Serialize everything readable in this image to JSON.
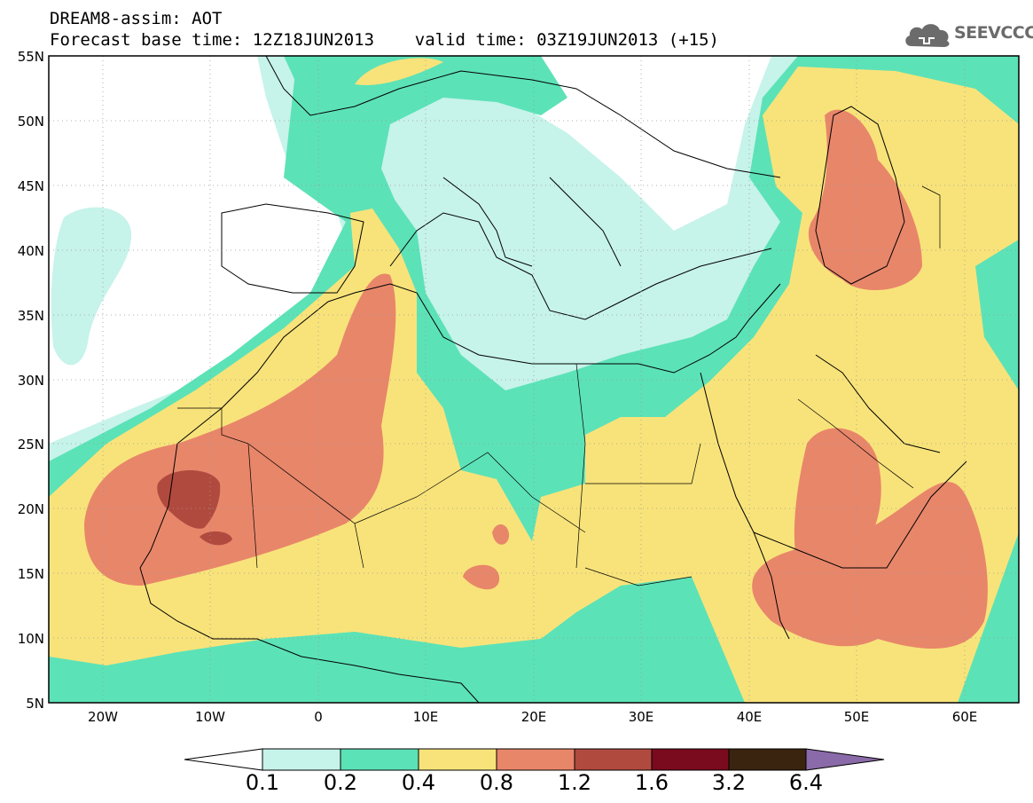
{
  "header": {
    "title_line1": "DREAM8-assim: AOT",
    "title_line2": "Forecast base time: 12Z18JUN2013    valid time: 03Z19JUN2013 (+15)"
  },
  "logo": {
    "text": "SEEVCCC",
    "icon": "cloud-icon"
  },
  "map": {
    "variable": "AOT",
    "lat_labels": [
      "55N",
      "50N",
      "45N",
      "40N",
      "35N",
      "30N",
      "25N",
      "20N",
      "15N",
      "10N",
      "5N"
    ],
    "lon_labels": [
      "20W",
      "10W",
      "0",
      "10E",
      "20E",
      "30E",
      "40E",
      "50E",
      "60E"
    ],
    "extent": {
      "lon_min": -25,
      "lon_max": 65,
      "lat_min": 5,
      "lat_max": 55
    }
  },
  "colorbar": {
    "levels": [
      "0.1",
      "0.2",
      "0.4",
      "0.8",
      "1.2",
      "1.6",
      "3.2",
      "6.4"
    ],
    "colors": [
      "#ffffff",
      "#c6f3ea",
      "#5ce2b7",
      "#f8e37a",
      "#e8866a",
      "#b14a3e",
      "#7a0a1e",
      "#3a2410",
      "#8a6aa8"
    ]
  }
}
